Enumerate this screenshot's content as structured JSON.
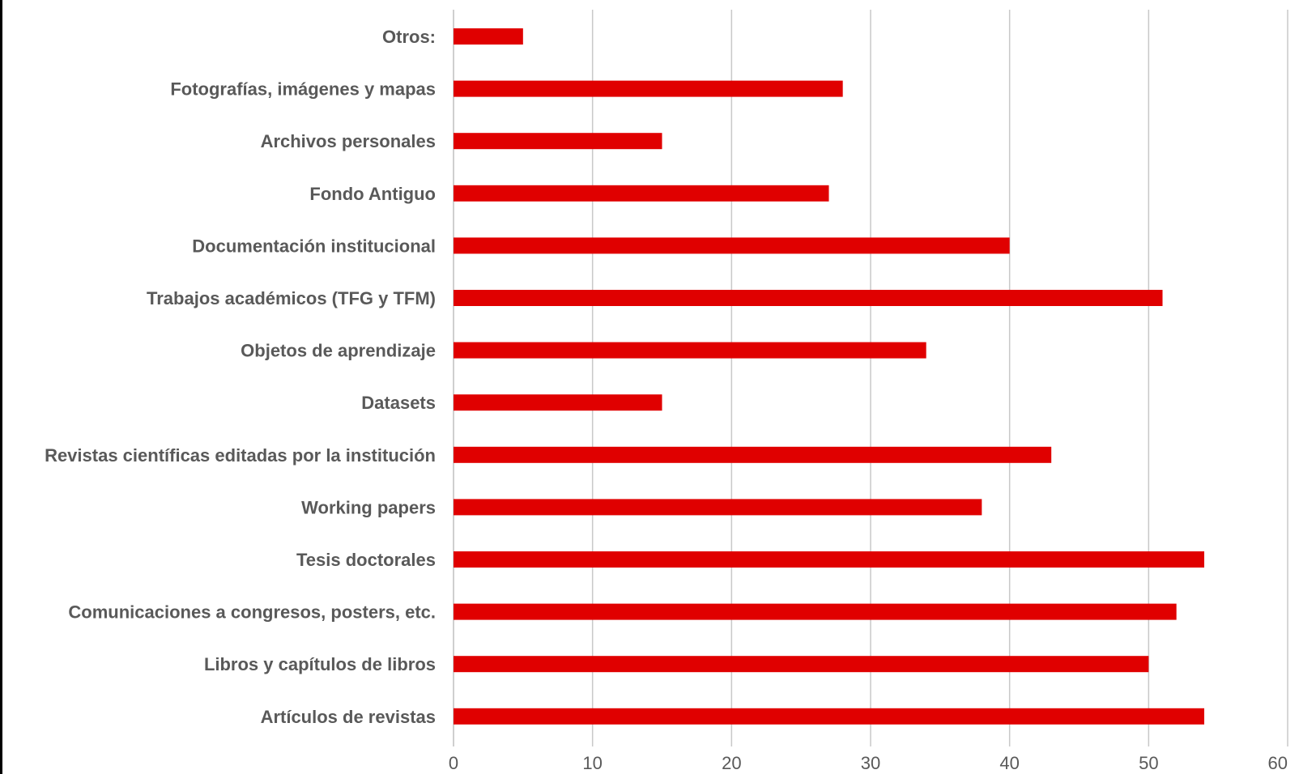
{
  "chart_data": {
    "type": "bar",
    "orientation": "horizontal",
    "title": "",
    "xlabel": "",
    "ylabel": "",
    "xlim": [
      0,
      60
    ],
    "x_ticks": [
      "0",
      "10",
      "20",
      "30",
      "40",
      "50",
      "60"
    ],
    "grid": "vertical",
    "legend": "none",
    "bar_color": "#E00000",
    "categories": [
      "Otros:",
      "Fotografías, imágenes y mapas",
      "Archivos personales",
      "Fondo Antiguo",
      "Documentación institucional",
      "Trabajos académicos (TFG  y TFM)",
      "Objetos de aprendizaje",
      "Datasets",
      "Revistas científicas editadas por la institución",
      "Working papers",
      "Tesis doctorales",
      "Comunicaciones a congresos, posters, etc.",
      "Libros y capítulos de libros",
      "Artículos de revistas"
    ],
    "values": [
      5,
      28,
      15,
      27,
      40,
      51,
      34,
      15,
      43,
      38,
      54,
      52,
      50,
      54
    ]
  }
}
